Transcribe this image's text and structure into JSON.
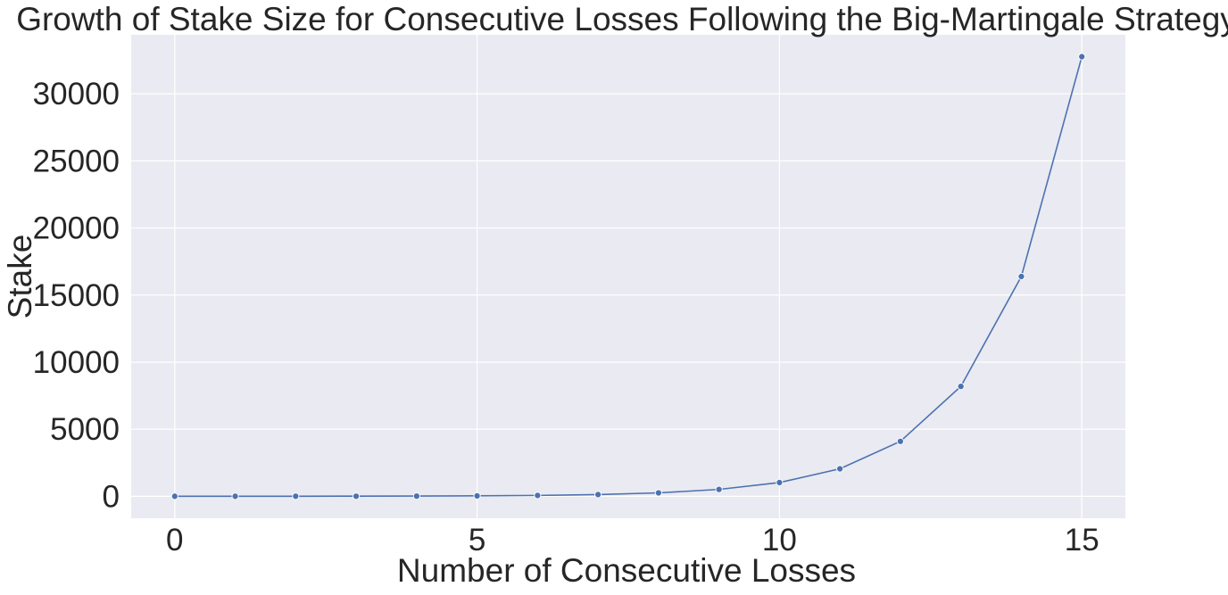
{
  "chart_data": {
    "type": "line",
    "title": "Growth of Stake Size for Consecutive Losses Following the Big-Martingale Strategy",
    "xlabel": "Number of Consecutive Losses",
    "ylabel": "Stake",
    "xlim": [
      -0.72,
      15.72
    ],
    "ylim": [
      -1640,
      34400
    ],
    "xticks": [
      0,
      5,
      10,
      15
    ],
    "yticks": [
      0,
      5000,
      10000,
      15000,
      20000,
      25000,
      30000
    ],
    "grid": true,
    "legend": "none",
    "series": [
      {
        "name": "Stake",
        "color": "#4c72b0",
        "x": [
          0,
          1,
          2,
          3,
          4,
          5,
          6,
          7,
          8,
          9,
          10,
          11,
          12,
          13,
          14,
          15
        ],
        "values": [
          1,
          2,
          4,
          8,
          16,
          32,
          64,
          128,
          256,
          512,
          1024,
          2048,
          4096,
          8192,
          16384,
          32768
        ]
      }
    ]
  }
}
